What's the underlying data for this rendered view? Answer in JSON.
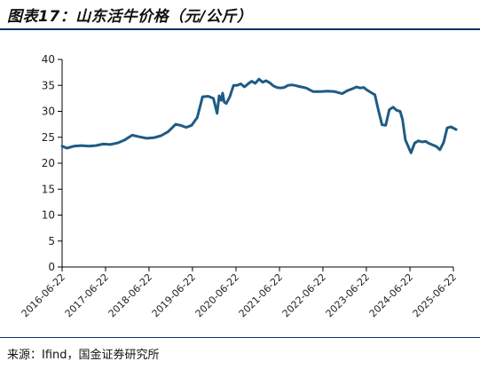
{
  "page": {
    "title": "图表17：山东活牛价格（元/公斤）",
    "source": "来源：Ifind，国金证券研究所"
  },
  "colors": {
    "line": "#1f5b85",
    "axis": "#000000",
    "rule": "#0d2f63"
  },
  "chart_data": {
    "type": "line",
    "title": "",
    "xlabel": "",
    "ylabel": "",
    "ylim": [
      0,
      40
    ],
    "yticks": [
      0,
      5,
      10,
      15,
      20,
      25,
      30,
      35,
      40
    ],
    "xticks": [
      "2016-06-22",
      "2017-06-22",
      "2018-06-22",
      "2019-06-22",
      "2020-06-22",
      "2021-06-22",
      "2022-06-22",
      "2023-06-22",
      "2024-06-22",
      "2025-06-22"
    ],
    "grid": false,
    "legend": "none",
    "series": [
      {
        "x": [
          "2016-06-22",
          "2016-08-01",
          "2016-10-01",
          "2016-12-01",
          "2017-02-01",
          "2017-04-01",
          "2017-06-01",
          "2017-08-01",
          "2017-10-01",
          "2017-12-01",
          "2018-02-01",
          "2018-04-01",
          "2018-06-01",
          "2018-08-01",
          "2018-10-01",
          "2018-12-01",
          "2019-02-01",
          "2019-03-15",
          "2019-05-01",
          "2019-06-15",
          "2019-08-01",
          "2019-09-15",
          "2019-11-01",
          "2019-12-15",
          "2020-01-15",
          "2020-02-01",
          "2020-02-20",
          "2020-03-01",
          "2020-03-15",
          "2020-04-01",
          "2020-05-01",
          "2020-06-01",
          "2020-07-01",
          "2020-08-01",
          "2020-09-01",
          "2020-10-01",
          "2020-11-01",
          "2020-12-01",
          "2021-01-01",
          "2021-02-01",
          "2021-03-01",
          "2021-04-01",
          "2021-05-01",
          "2021-06-01",
          "2021-07-01",
          "2021-08-01",
          "2021-09-01",
          "2021-10-01",
          "2021-11-01",
          "2021-12-01",
          "2022-02-01",
          "2022-04-01",
          "2022-06-01",
          "2022-08-01",
          "2022-10-01",
          "2022-12-01",
          "2023-01-15",
          "2023-03-01",
          "2023-04-01",
          "2023-05-01",
          "2023-06-01",
          "2023-06-20",
          "2023-08-01",
          "2023-09-01",
          "2023-10-01",
          "2023-11-01",
          "2023-12-01",
          "2024-01-01",
          "2024-02-01",
          "2024-03-01",
          "2024-04-01",
          "2024-04-20",
          "2024-05-15",
          "2024-07-01",
          "2024-08-01",
          "2024-09-01",
          "2024-10-01",
          "2024-11-01",
          "2024-12-01",
          "2025-01-01",
          "2025-02-01",
          "2025-03-01",
          "2025-04-01",
          "2025-05-01",
          "2025-06-01",
          "2025-07-15"
        ],
        "y": [
          23.3,
          22.9,
          23.3,
          23.4,
          23.3,
          23.4,
          23.7,
          23.6,
          23.9,
          24.5,
          25.4,
          25.1,
          24.8,
          24.9,
          25.3,
          26.1,
          27.5,
          27.3,
          26.9,
          27.3,
          28.8,
          32.8,
          32.9,
          32.5,
          29.6,
          33.0,
          32.1,
          33.5,
          31.8,
          31.5,
          32.8,
          35.0,
          35.0,
          35.3,
          34.7,
          35.3,
          35.8,
          35.4,
          36.2,
          35.6,
          35.9,
          35.5,
          34.9,
          34.6,
          34.5,
          34.6,
          35.0,
          35.1,
          35.0,
          34.8,
          34.5,
          33.8,
          33.8,
          33.9,
          33.8,
          33.4,
          34.0,
          34.4,
          34.7,
          34.5,
          34.6,
          34.2,
          33.6,
          33.2,
          30.2,
          27.4,
          27.3,
          30.3,
          30.8,
          30.2,
          30.0,
          28.5,
          24.5,
          22.0,
          23.9,
          24.3,
          24.1,
          24.2,
          23.8,
          23.5,
          23.2,
          22.6,
          24.0,
          26.8,
          27.0,
          26.5
        ]
      }
    ]
  }
}
